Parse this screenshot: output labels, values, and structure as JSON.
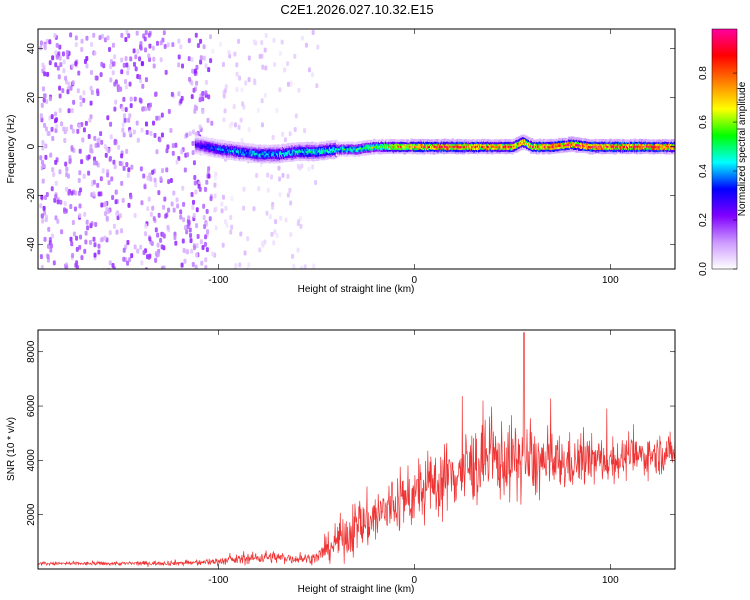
{
  "title": "C2E1.2026.027.10.32.E15",
  "chart_data": [
    {
      "type": "heatmap",
      "name": "spectrogram",
      "xlabel": "Height of straight line (km)",
      "ylabel": "Frequency (Hz)",
      "xlim": [
        -192,
        133
      ],
      "ylim": [
        -50,
        48
      ],
      "x_ticks": [
        -100,
        0,
        100
      ],
      "x_tick_labels": [
        "-100",
        "0",
        "100"
      ],
      "y_ticks": [
        -40,
        -20,
        0,
        20,
        40
      ],
      "y_tick_labels": [
        "-40",
        "-20",
        "0",
        "20",
        "40"
      ],
      "colorbar": {
        "label": "Normalized spectral amplitude",
        "range": [
          0,
          0.98
        ],
        "ticks": [
          0.0,
          0.2,
          0.4,
          0.6,
          0.8
        ],
        "tick_labels": [
          "0.0",
          "0.2",
          "0.4",
          "0.6",
          "0.8"
        ],
        "colormap": [
          "#ffffff",
          "#cc99ff",
          "#8000ff",
          "#0000ff",
          "#00ffff",
          "#00ff00",
          "#ffff00",
          "#ff8000",
          "#ff0000",
          "#ff00a0"
        ]
      },
      "regions": [
        {
          "x": [
            -192,
            -104
          ],
          "description_level": 0.12
        },
        {
          "x": [
            -104,
            -50
          ],
          "description_level": 0.05
        }
      ],
      "ridge": {
        "x": [
          -112,
          -100,
          -90,
          -80,
          -70,
          -60,
          -50,
          -40,
          -30,
          -20,
          -10,
          0,
          10,
          20,
          30,
          40,
          50,
          55,
          60,
          70,
          80,
          90,
          100,
          110,
          120,
          133
        ],
        "freq": [
          1,
          -1,
          -2,
          -3,
          -3,
          -2,
          -2,
          -1,
          -1,
          0,
          0,
          0,
          0,
          0,
          0,
          0,
          0,
          2,
          0,
          0,
          1,
          0,
          0,
          0,
          0,
          0
        ],
        "amplitude": [
          0.25,
          0.35,
          0.38,
          0.4,
          0.4,
          0.42,
          0.45,
          0.45,
          0.5,
          0.6,
          0.7,
          0.8,
          0.85,
          0.85,
          0.82,
          0.8,
          0.8,
          0.75,
          0.8,
          0.85,
          0.85,
          0.85,
          0.85,
          0.88,
          0.88,
          0.85
        ]
      }
    },
    {
      "type": "line",
      "name": "snr",
      "xlabel": "Height of straight line (km)",
      "ylabel": "SNR (10 * v/v)",
      "xlim": [
        -192,
        133
      ],
      "ylim": [
        0,
        8800
      ],
      "x_ticks": [
        -100,
        0,
        100
      ],
      "x_tick_labels": [
        "-100",
        "0",
        "100"
      ],
      "y_ticks": [
        2000,
        4000,
        6000,
        8000
      ],
      "y_tick_labels": [
        "2000",
        "4000",
        "6000",
        "8000"
      ],
      "color": "#ee3333",
      "envelope": {
        "x": [
          -192,
          -150,
          -110,
          -90,
          -75,
          -60,
          -50,
          -45,
          -40,
          -30,
          -20,
          -10,
          0,
          10,
          20,
          30,
          40,
          50,
          60,
          70,
          80,
          90,
          100,
          110,
          120,
          133
        ],
        "base": [
          200,
          200,
          230,
          350,
          450,
          380,
          400,
          700,
          1000,
          1500,
          1900,
          2400,
          2700,
          3100,
          3500,
          3800,
          4000,
          4000,
          3900,
          3850,
          3900,
          4000,
          4000,
          4100,
          4200,
          4300
        ],
        "spread": [
          80,
          80,
          120,
          200,
          260,
          200,
          220,
          500,
          800,
          1100,
          1200,
          1300,
          1300,
          1400,
          1500,
          1600,
          1600,
          1600,
          1500,
          1300,
          1100,
          1000,
          900,
          800,
          800,
          750
        ]
      },
      "peak": {
        "x": 56,
        "y": 8700
      }
    }
  ]
}
